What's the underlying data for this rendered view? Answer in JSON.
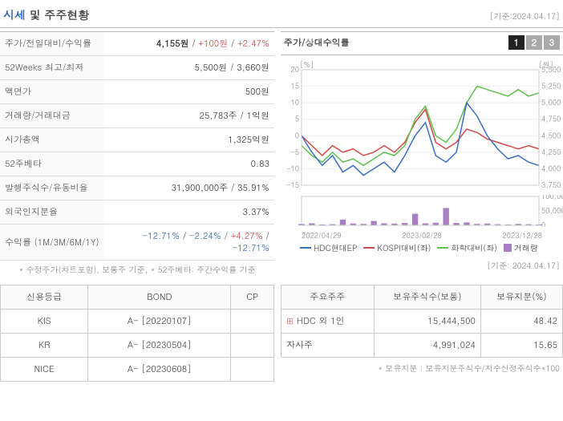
{
  "header": {
    "title_em": "시세",
    "title_rest": "및 주주현황",
    "date": "[기준:2024.04.17]"
  },
  "metrics": [
    {
      "label": "주가/전일대비/수익률",
      "value": "4,155원",
      "delta": "+100원",
      "pct": "+2.47%",
      "delta_up": true
    },
    {
      "label": "52Weeks 최고/최저",
      "value": "5,500원 / 3,660원"
    },
    {
      "label": "액면가",
      "value": "500원"
    },
    {
      "label": "거래량/거래대금",
      "value": "25,783주 / 1억원"
    },
    {
      "label": "시가총액",
      "value": "1,325억원"
    },
    {
      "label": "52주베타",
      "value": "0.83"
    },
    {
      "label": "발행주식수/유동비율",
      "value": "31,900,000주 / 35.91%"
    },
    {
      "label": "외국인지분율",
      "value": "3.37%"
    },
    {
      "label": "수익률 (1M/3M/6M/1Y)",
      "multi": [
        {
          "v": "-12.71%",
          "up": false
        },
        {
          "v": "-2.24%",
          "up": false
        },
        {
          "v": "+4.27%",
          "up": true
        },
        {
          "v": "-12.71%",
          "up": false
        }
      ]
    }
  ],
  "footnote_left": "* 수정주가(차트포함), 보통주 기준, * 52주베타: 주간수익률 기준",
  "chart": {
    "title": "주가/상대수익률",
    "tabs": [
      "1",
      "2",
      "3"
    ],
    "active_tab": 0,
    "y_left": {
      "label": "[%]",
      "min": -15,
      "max": 20,
      "ticks": [
        -15,
        -10,
        -5,
        0,
        5,
        10,
        15,
        20
      ]
    },
    "y_right": {
      "label": "[원]",
      "min": 3750,
      "max": 5500,
      "ticks": [
        3750,
        4000,
        4250,
        4500,
        4750,
        5000,
        5250,
        5500
      ]
    },
    "x_labels": [
      "2022/04/29",
      "2023/02/28",
      "2023/12/28"
    ],
    "series": {
      "hdc": {
        "name": "HDC현대EP",
        "color": "#3a6fc4",
        "unit": "price",
        "data": [
          4500,
          4250,
          4050,
          4200,
          3950,
          4050,
          3900,
          4000,
          4100,
          3950,
          4200,
          4500,
          4700,
          4200,
          4100,
          4250,
          5000,
          4800,
          4500,
          4300,
          4150,
          4200,
          4100,
          4050
        ]
      },
      "kospi": {
        "name": "KOSPI대비(좌)",
        "color": "#d34a4a",
        "unit": "pct",
        "data": [
          0,
          -3,
          -6,
          -3,
          -5,
          -4,
          -6,
          -5,
          -3,
          -5,
          -2,
          4,
          8,
          -2,
          -4,
          -2,
          2,
          1,
          -1,
          -2,
          -3,
          -4,
          -3,
          -4
        ]
      },
      "chem": {
        "name": "화학대비(좌)",
        "color": "#5fc14c",
        "unit": "pct",
        "data": [
          -3,
          -6,
          -8,
          -5,
          -8,
          -7,
          -9,
          -7,
          -5,
          -6,
          -3,
          5,
          9,
          0,
          -2,
          2,
          10,
          15,
          14,
          13,
          12,
          14,
          12,
          13
        ]
      }
    },
    "volume": {
      "name": "거래량",
      "color": "#a77fc2",
      "max": 100000,
      "ticks": [
        0,
        50000,
        100000
      ],
      "data": [
        5000,
        7000,
        3000,
        4000,
        20000,
        6000,
        5000,
        15000,
        7000,
        6000,
        8000,
        40000,
        7000,
        9000,
        60000,
        8000,
        10000,
        5000,
        6000,
        4000,
        3000,
        5000,
        4000,
        3000
      ]
    },
    "footer_date": "[기준: 2024.04.17]"
  },
  "credit": {
    "cols": [
      "신용등급",
      "BOND",
      "CP"
    ],
    "rows": [
      {
        "agency": "KIS",
        "bond_grade": "A-",
        "bond_date": "[20220107]",
        "cp": ""
      },
      {
        "agency": "KR",
        "bond_grade": "A-",
        "bond_date": "[20230504]",
        "cp": ""
      },
      {
        "agency": "NICE",
        "bond_grade": "A-",
        "bond_date": "[20230608]",
        "cp": ""
      }
    ]
  },
  "shareholders": {
    "cols": [
      "주요주주",
      "보유주식수(보통)",
      "보유지분(%)"
    ],
    "rows": [
      {
        "name": "HDC 외 1인",
        "expand": true,
        "shares": "15,444,500",
        "pct": "48.42"
      },
      {
        "name": "자사주",
        "expand": false,
        "shares": "4,991,024",
        "pct": "15.65"
      }
    ],
    "footnote": "* 보유지분 : 보유지분주식수/지수산정주식수*100"
  }
}
